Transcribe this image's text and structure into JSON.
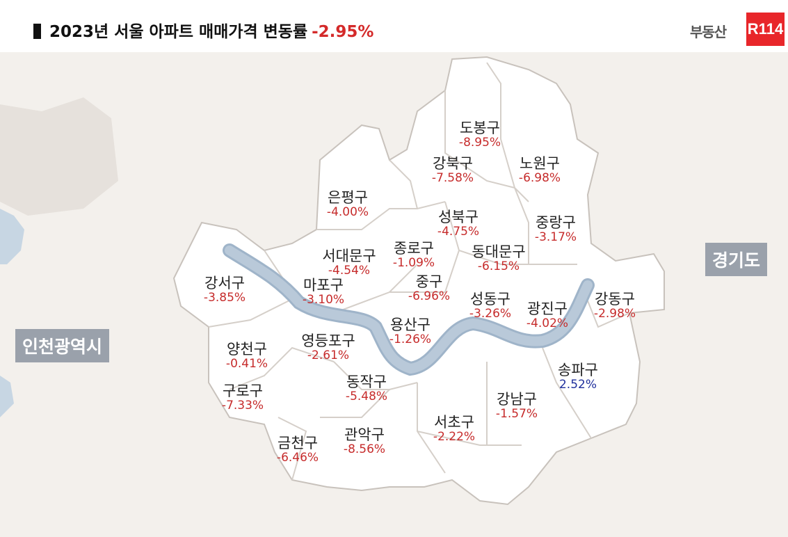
{
  "header": {
    "title": "2023년 서울 아파트 매매가격 변동률",
    "total_change": "-2.95%",
    "logo_text": "부동산",
    "logo_mark": "R114"
  },
  "regions": {
    "incheon": "인천광역시",
    "gyeonggi": "경기도"
  },
  "colors": {
    "negative": "#c62b2b",
    "positive": "#1f2f9c",
    "river": "#b9c9d9",
    "land": "#ffffff",
    "surrounding": "#ece8e3"
  },
  "districts": [
    {
      "name": "도봉구",
      "rate": "-8.95%"
    },
    {
      "name": "강북구",
      "rate": "-7.58%"
    },
    {
      "name": "노원구",
      "rate": "-6.98%"
    },
    {
      "name": "은평구",
      "rate": "-4.00%"
    },
    {
      "name": "성북구",
      "rate": "-4.75%"
    },
    {
      "name": "중랑구",
      "rate": "-3.17%"
    },
    {
      "name": "서대문구",
      "rate": "-4.54%"
    },
    {
      "name": "종로구",
      "rate": "-1.09%"
    },
    {
      "name": "동대문구",
      "rate": "-6.15%"
    },
    {
      "name": "강서구",
      "rate": "-3.85%"
    },
    {
      "name": "마포구",
      "rate": "-3.10%"
    },
    {
      "name": "중구",
      "rate": "-6.96%"
    },
    {
      "name": "성동구",
      "rate": "-3.26%"
    },
    {
      "name": "광진구",
      "rate": "-4.02%"
    },
    {
      "name": "강동구",
      "rate": "-2.98%"
    },
    {
      "name": "양천구",
      "rate": "-0.41%"
    },
    {
      "name": "영등포구",
      "rate": "-2.61%"
    },
    {
      "name": "용산구",
      "rate": "-1.26%"
    },
    {
      "name": "송파구",
      "rate": "2.52%"
    },
    {
      "name": "구로구",
      "rate": "-7.33%"
    },
    {
      "name": "동작구",
      "rate": "-5.48%"
    },
    {
      "name": "강남구",
      "rate": "-1.57%"
    },
    {
      "name": "금천구",
      "rate": "-6.46%"
    },
    {
      "name": "관악구",
      "rate": "-8.56%"
    },
    {
      "name": "서초구",
      "rate": "-2.22%"
    }
  ]
}
